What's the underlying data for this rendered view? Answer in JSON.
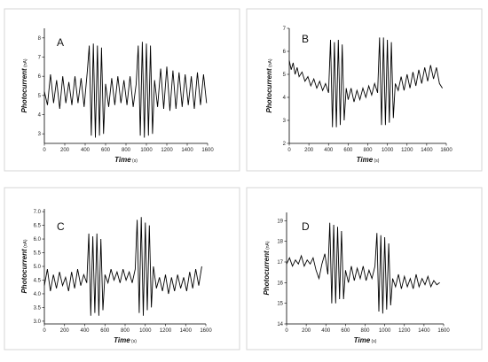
{
  "chart_data": [
    {
      "type": "line",
      "panel_label": "A",
      "ylabel": "Photocurrent",
      "yunit": "(nA)",
      "xlabel": "Time",
      "xunit": "(s)",
      "xlim": [
        0,
        1600
      ],
      "ylim": [
        2.5,
        8.5
      ],
      "xticks": [
        0,
        200,
        400,
        600,
        800,
        1000,
        1200,
        1400,
        1600
      ],
      "yticks": [
        3,
        4,
        5,
        6,
        7,
        8
      ],
      "series": [
        {
          "x": [
            0,
            30,
            60,
            90,
            120,
            150,
            180,
            210,
            240,
            270,
            300,
            330,
            360,
            390,
            420,
            440,
            460,
            480,
            500,
            520,
            540,
            560,
            580,
            600,
            630,
            660,
            690,
            720,
            750,
            780,
            810,
            840,
            870,
            900,
            920,
            940,
            960,
            980,
            1000,
            1020,
            1040,
            1060,
            1080,
            1110,
            1140,
            1170,
            1200,
            1230,
            1260,
            1290,
            1320,
            1350,
            1380,
            1410,
            1440,
            1470,
            1500,
            1530,
            1560,
            1590
          ],
          "y": [
            5.2,
            4.5,
            6.1,
            4.6,
            5.8,
            4.3,
            6.0,
            4.6,
            5.7,
            4.5,
            6.0,
            4.6,
            5.9,
            4.4,
            6.2,
            7.6,
            2.9,
            7.7,
            2.8,
            7.6,
            2.9,
            7.5,
            3.0,
            5.6,
            4.4,
            5.9,
            4.5,
            6.0,
            4.6,
            5.8,
            4.5,
            6.0,
            4.4,
            5.6,
            7.6,
            2.9,
            7.8,
            2.8,
            7.7,
            2.9,
            7.6,
            3.0,
            5.8,
            4.4,
            6.4,
            4.3,
            6.5,
            4.2,
            6.3,
            4.3,
            6.2,
            4.4,
            6.1,
            4.5,
            6.0,
            4.3,
            6.2,
            4.5,
            6.1,
            4.6
          ]
        }
      ]
    },
    {
      "type": "line",
      "panel_label": "B",
      "ylabel": "Photocurrent",
      "yunit": "(nA)",
      "xlabel": "Time",
      "xunit": "(s)",
      "xlim": [
        0,
        1600
      ],
      "ylim": [
        2,
        7
      ],
      "xticks": [
        0,
        200,
        400,
        600,
        800,
        1000,
        1200,
        1400,
        1600
      ],
      "yticks": [
        2,
        3,
        4,
        5,
        6,
        7
      ],
      "series": [
        {
          "x": [
            0,
            20,
            40,
            60,
            80,
            100,
            130,
            160,
            190,
            220,
            250,
            280,
            310,
            340,
            370,
            400,
            420,
            440,
            460,
            480,
            500,
            520,
            540,
            560,
            580,
            600,
            630,
            660,
            690,
            720,
            750,
            780,
            810,
            840,
            870,
            900,
            920,
            940,
            960,
            980,
            1000,
            1020,
            1040,
            1060,
            1080,
            1110,
            1140,
            1170,
            1200,
            1230,
            1260,
            1290,
            1320,
            1350,
            1380,
            1410,
            1440,
            1470,
            1500,
            1530,
            1560
          ],
          "y": [
            5.6,
            5.2,
            5.5,
            5.0,
            5.3,
            4.9,
            5.1,
            4.7,
            4.9,
            4.5,
            4.8,
            4.4,
            4.7,
            4.3,
            4.6,
            4.2,
            6.5,
            2.7,
            6.4,
            2.7,
            6.5,
            2.8,
            6.3,
            3.0,
            4.4,
            3.9,
            4.4,
            3.8,
            4.3,
            3.9,
            4.4,
            4.0,
            4.5,
            4.1,
            4.6,
            4.2,
            6.6,
            2.8,
            6.6,
            2.8,
            6.5,
            2.9,
            6.4,
            3.1,
            4.6,
            4.3,
            4.9,
            4.3,
            5.0,
            4.4,
            5.1,
            4.5,
            5.2,
            4.6,
            5.3,
            4.7,
            5.4,
            4.8,
            5.3,
            4.6,
            4.4
          ]
        }
      ]
    },
    {
      "type": "line",
      "panel_label": "C",
      "ylabel": "Photocurrent",
      "yunit": "(nA)",
      "xlabel": "Time",
      "xunit": "(s)",
      "xlim": [
        0,
        1600
      ],
      "ylim": [
        2.9,
        7.1
      ],
      "xticks": [
        0,
        200,
        400,
        600,
        800,
        1000,
        1200,
        1400,
        1600
      ],
      "yticks": [
        3.0,
        3.5,
        4.0,
        4.5,
        5.0,
        5.5,
        6.0,
        6.5,
        7.0
      ],
      "ytick_labels": [
        "3.0",
        "3.5",
        "4.0",
        "4.5",
        "5.0",
        "5.5",
        "6.0",
        "6.5",
        "7.0"
      ],
      "series": [
        {
          "x": [
            0,
            30,
            60,
            90,
            120,
            150,
            180,
            210,
            240,
            270,
            300,
            330,
            360,
            390,
            420,
            440,
            460,
            480,
            500,
            520,
            540,
            560,
            580,
            600,
            630,
            660,
            690,
            720,
            750,
            780,
            810,
            840,
            870,
            900,
            920,
            940,
            960,
            980,
            1000,
            1020,
            1040,
            1060,
            1080,
            1110,
            1140,
            1170,
            1200,
            1230,
            1260,
            1290,
            1320,
            1350,
            1380,
            1410,
            1440,
            1470,
            1500,
            1530,
            1560
          ],
          "y": [
            4.3,
            4.9,
            4.1,
            4.7,
            4.2,
            4.8,
            4.3,
            4.6,
            4.1,
            4.8,
            4.2,
            4.9,
            4.3,
            4.7,
            4.4,
            6.2,
            3.2,
            6.1,
            3.3,
            6.2,
            3.2,
            6.0,
            3.4,
            4.7,
            4.4,
            4.9,
            4.5,
            4.8,
            4.4,
            4.9,
            4.5,
            4.8,
            4.4,
            4.9,
            6.7,
            3.3,
            6.8,
            3.2,
            6.6,
            3.4,
            6.5,
            3.5,
            5.0,
            4.2,
            4.6,
            4.1,
            4.7,
            4.0,
            4.6,
            4.1,
            4.7,
            4.2,
            4.6,
            4.1,
            4.8,
            4.2,
            4.9,
            4.3,
            5.0
          ]
        }
      ]
    },
    {
      "type": "line",
      "panel_label": "D",
      "ylabel": "Photocurrent",
      "yunit": "(nA)",
      "xlabel": "Time",
      "xunit": "(s)",
      "xlim": [
        0,
        1600
      ],
      "ylim": [
        14,
        19.4
      ],
      "xticks": [
        0,
        200,
        400,
        600,
        800,
        1000,
        1200,
        1400,
        1600
      ],
      "yticks": [
        14,
        15,
        16,
        17,
        18,
        19
      ],
      "series": [
        {
          "x": [
            0,
            30,
            60,
            90,
            120,
            150,
            180,
            210,
            240,
            270,
            300,
            330,
            360,
            390,
            420,
            440,
            460,
            480,
            500,
            520,
            540,
            560,
            580,
            600,
            630,
            660,
            690,
            720,
            750,
            780,
            810,
            840,
            870,
            900,
            920,
            940,
            960,
            980,
            1000,
            1020,
            1040,
            1060,
            1080,
            1110,
            1140,
            1170,
            1200,
            1230,
            1260,
            1290,
            1320,
            1350,
            1380,
            1410,
            1440,
            1470,
            1500,
            1530,
            1560
          ],
          "y": [
            16.9,
            17.2,
            16.8,
            17.1,
            16.9,
            17.3,
            16.8,
            17.1,
            16.9,
            17.2,
            16.6,
            16.2,
            16.9,
            17.4,
            16.4,
            18.9,
            15.0,
            18.8,
            15.0,
            18.7,
            15.2,
            18.5,
            15.2,
            16.6,
            16.0,
            16.8,
            16.1,
            16.7,
            16.2,
            16.8,
            16.1,
            16.6,
            16.2,
            16.8,
            18.4,
            14.6,
            18.3,
            14.5,
            18.2,
            14.7,
            17.9,
            14.9,
            16.2,
            15.8,
            16.4,
            15.7,
            16.3,
            15.8,
            16.2,
            15.7,
            16.4,
            15.8,
            16.2,
            15.9,
            16.3,
            15.8,
            16.1,
            15.9,
            16.0
          ]
        }
      ]
    }
  ]
}
